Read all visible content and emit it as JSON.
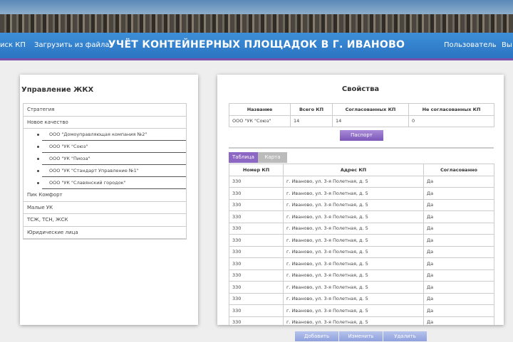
{
  "header": {
    "nav_left": [
      "иск КП",
      "Загрузить из файла"
    ],
    "title": "УЧЁТ КОНТЕЙНЕРНЫХ ПЛОЩАДОК В Г. ИВАНОВО",
    "nav_right": [
      "Пользователь",
      "Вы"
    ]
  },
  "left_panel": {
    "title": "Управление ЖКХ",
    "items": [
      {
        "label": "Стратегия",
        "children": []
      },
      {
        "label": "Новое качество",
        "children": [
          "ООО \"Домоуправляющая компания №2\"",
          "ООО \"УК \"Союз\"",
          "ООО \"УК \"Пиоза\"",
          "ООО \"УК \"Стандарт Управление №1\"",
          "ООО \"УК \"Славянский городок\""
        ]
      },
      {
        "label": "Пик Комфорт",
        "children": []
      },
      {
        "label": "Малые УК",
        "children": []
      },
      {
        "label": "ТСЖ, ТСН, ЖСК",
        "children": []
      },
      {
        "label": "Юридические лица",
        "children": []
      }
    ]
  },
  "right_panel": {
    "title": "Свойства",
    "summary": {
      "columns": [
        "Название",
        "Всего КП",
        "Согласованных КП",
        "Не согласованных КП"
      ],
      "rows": [
        [
          "ООО \"УК \"Союз\"",
          "14",
          "14",
          "0"
        ]
      ]
    },
    "passport_button": "Паспорт",
    "tabs": [
      "Таблица",
      "Карта"
    ],
    "table": {
      "columns": [
        "Номер КП",
        "Адрес КП",
        "Согласованно"
      ],
      "rows": [
        [
          "330",
          "г. Иваново, ул. 3-я Полетная, д. 5",
          "Да"
        ],
        [
          "330",
          "г. Иваново, ул. 3-я Полетная, д. 5",
          "Да"
        ],
        [
          "330",
          "г. Иваново, ул. 3-я Полетная, д. 5",
          "Да"
        ],
        [
          "330",
          "г. Иваново, ул. 3-я Полетная, д. 5",
          "Да"
        ],
        [
          "330",
          "г. Иваново, ул. 3-я Полетная, д. 5",
          "Да"
        ],
        [
          "330",
          "г. Иваново, ул. 3-я Полетная, д. 5",
          "Да"
        ],
        [
          "330",
          "г. Иваново, ул. 3-я Полетная, д. 5",
          "Да"
        ],
        [
          "330",
          "г. Иваново, ул. 3-я Полетная, д. 5",
          "Да"
        ],
        [
          "330",
          "г. Иваново, ул. 3-я Полетная, д. 5",
          "Да"
        ],
        [
          "330",
          "г. Иваново, ул. 3-я Полетная, д. 5",
          "Да"
        ],
        [
          "330",
          "г. Иваново, ул. 3-я Полетная, д. 5",
          "Да"
        ],
        [
          "330",
          "г. Иваново, ул. 3-я Полетная, д. 5",
          "Да"
        ],
        [
          "330",
          "г. Иваново, ул. 3-я Полетная, д. 5",
          "Да"
        ]
      ]
    },
    "actions": [
      "Добавить",
      "Изменить",
      "Удалить"
    ]
  }
}
